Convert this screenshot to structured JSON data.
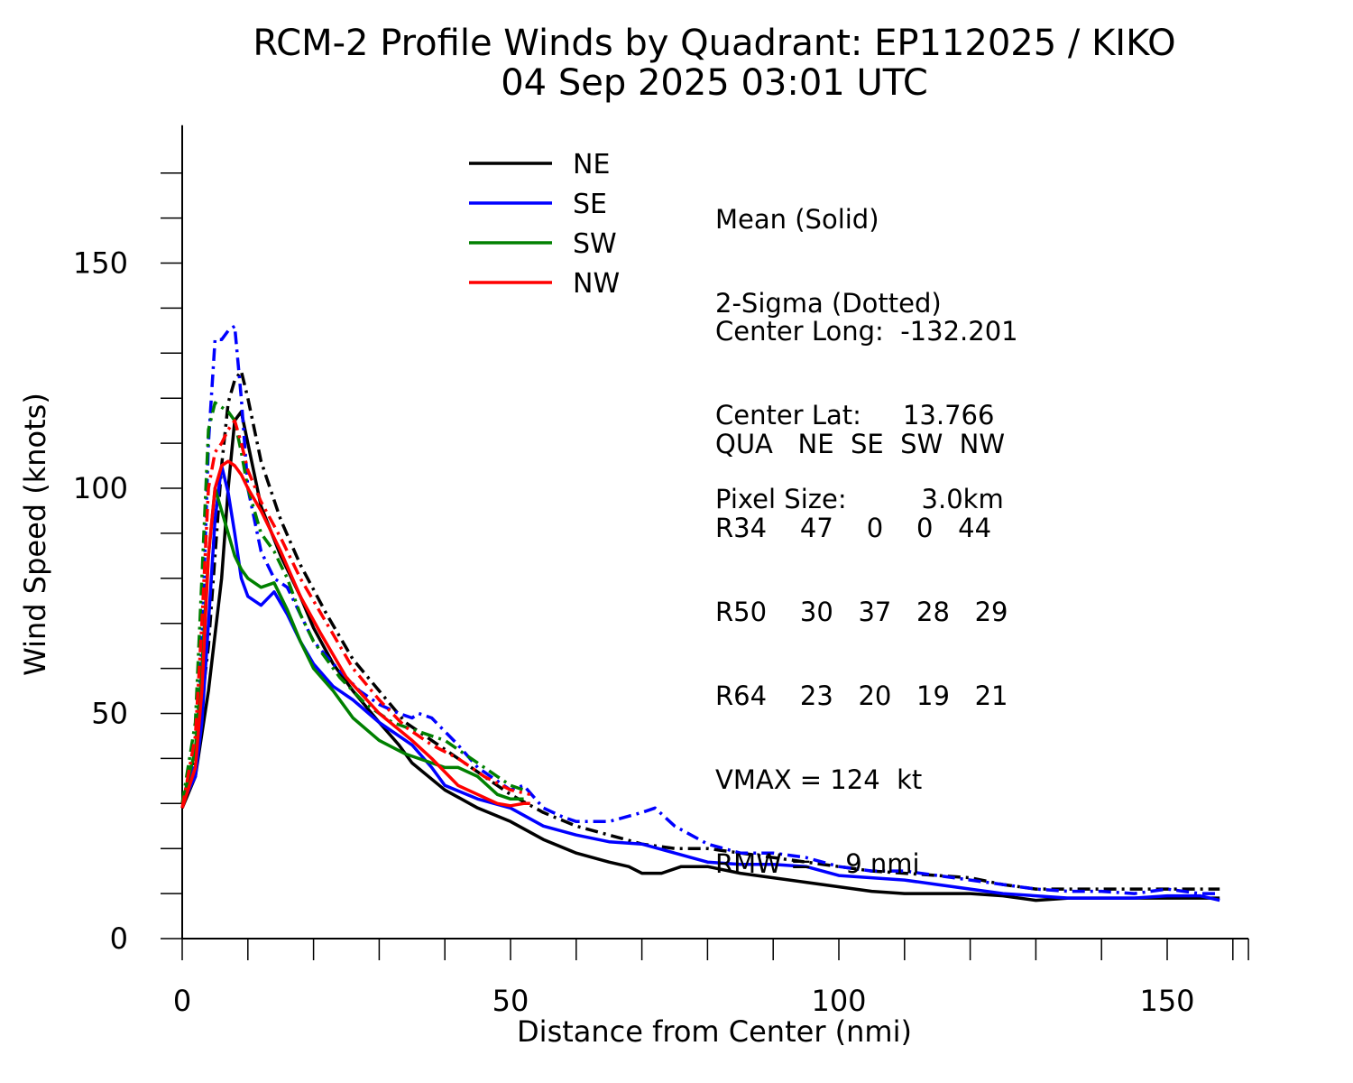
{
  "title_line1": "RCM-2 Profile Winds by Quadrant: EP112025 / KIKO",
  "title_line2": "04 Sep 2025 03:01 UTC",
  "info": {
    "mean_label": "Mean (Solid)",
    "sigma_label": "2-Sigma (Dotted)",
    "center_long": "Center Long:  -132.201",
    "center_lat": "Center Lat:     13.766",
    "pixel_size": "Pixel Size:         3.0km",
    "table_header": "QUA   NE  SE  SW  NW",
    "r34": "R34    47    0    0   44",
    "r50": "R50    30   37   28   29",
    "r64": "R64    23   20   19   21",
    "vmax": "VMAX = 124  kt",
    "rmw": "RMW =    9 nmi"
  },
  "chart_data": {
    "type": "line",
    "title": "RCM-2 Profile Winds by Quadrant: EP112025 / KIKO",
    "subtitle": "04 Sep 2025 03:01 UTC",
    "xlabel": "Distance from Center (nmi)",
    "ylabel": "Wind Speed (knots)",
    "xlim": [
      0,
      161
    ],
    "ylim": [
      0,
      180
    ],
    "x_ticks": [
      0,
      50,
      100,
      150
    ],
    "y_ticks": [
      0,
      50,
      100,
      150
    ],
    "legend_position": "top-center",
    "grid": false,
    "series": [
      {
        "name": "NE",
        "color": "#000000",
        "mean": [
          [
            0,
            29
          ],
          [
            2,
            36
          ],
          [
            4,
            55
          ],
          [
            6,
            80
          ],
          [
            7,
            100
          ],
          [
            8,
            115
          ],
          [
            9,
            117
          ],
          [
            10,
            110
          ],
          [
            12,
            96
          ],
          [
            15,
            85
          ],
          [
            18,
            76
          ],
          [
            20,
            69
          ],
          [
            23,
            61
          ],
          [
            26,
            55
          ],
          [
            30,
            48
          ],
          [
            33,
            43
          ],
          [
            35,
            39
          ],
          [
            40,
            33
          ],
          [
            45,
            29
          ],
          [
            50,
            26
          ],
          [
            55,
            22
          ],
          [
            60,
            19
          ],
          [
            65,
            17
          ],
          [
            68,
            16
          ],
          [
            70,
            14.5
          ],
          [
            73,
            14.5
          ],
          [
            76,
            16
          ],
          [
            80,
            16
          ],
          [
            85,
            14.5
          ],
          [
            90,
            13.5
          ],
          [
            95,
            12.5
          ],
          [
            100,
            11.5
          ],
          [
            105,
            10.5
          ],
          [
            110,
            10
          ],
          [
            115,
            10
          ],
          [
            120,
            10
          ],
          [
            125,
            9.5
          ],
          [
            130,
            8.5
          ],
          [
            135,
            9
          ],
          [
            140,
            9
          ],
          [
            145,
            9
          ],
          [
            150,
            9
          ],
          [
            155,
            9
          ],
          [
            158,
            9
          ]
        ],
        "sigma": [
          [
            0,
            29
          ],
          [
            2,
            40
          ],
          [
            4,
            65
          ],
          [
            6,
            105
          ],
          [
            7,
            119
          ],
          [
            8,
            124
          ],
          [
            9,
            126
          ],
          [
            10,
            120
          ],
          [
            12,
            106
          ],
          [
            15,
            93
          ],
          [
            18,
            83
          ],
          [
            22,
            72
          ],
          [
            26,
            62
          ],
          [
            30,
            55
          ],
          [
            34,
            48
          ],
          [
            38,
            44
          ],
          [
            42,
            40
          ],
          [
            46,
            36
          ],
          [
            50,
            32
          ],
          [
            55,
            28
          ],
          [
            60,
            25
          ],
          [
            65,
            23
          ],
          [
            70,
            21
          ],
          [
            75,
            20
          ],
          [
            80,
            20
          ],
          [
            85,
            19
          ],
          [
            90,
            18
          ],
          [
            95,
            17
          ],
          [
            100,
            16
          ],
          [
            105,
            15
          ],
          [
            110,
            14.5
          ],
          [
            115,
            14
          ],
          [
            120,
            13.5
          ],
          [
            125,
            12
          ],
          [
            130,
            11
          ],
          [
            135,
            11
          ],
          [
            140,
            11
          ],
          [
            145,
            11
          ],
          [
            150,
            11
          ],
          [
            155,
            11
          ],
          [
            158,
            11
          ]
        ]
      },
      {
        "name": "SE",
        "color": "#0000ff",
        "mean": [
          [
            0,
            30
          ],
          [
            2,
            36
          ],
          [
            3,
            48
          ],
          [
            4,
            70
          ],
          [
            5,
            93
          ],
          [
            6,
            105
          ],
          [
            7,
            99
          ],
          [
            8,
            90
          ],
          [
            9,
            80
          ],
          [
            10,
            76
          ],
          [
            12,
            74
          ],
          [
            14,
            77
          ],
          [
            16,
            72
          ],
          [
            18,
            66
          ],
          [
            20,
            61
          ],
          [
            23,
            56
          ],
          [
            26,
            53
          ],
          [
            30,
            48
          ],
          [
            35,
            43
          ],
          [
            38,
            38
          ],
          [
            40,
            34
          ],
          [
            45,
            31
          ],
          [
            50,
            29
          ],
          [
            55,
            25
          ],
          [
            60,
            23
          ],
          [
            65,
            21.5
          ],
          [
            70,
            21
          ],
          [
            75,
            19
          ],
          [
            80,
            17
          ],
          [
            85,
            16.5
          ],
          [
            90,
            16.5
          ],
          [
            95,
            16
          ],
          [
            100,
            14
          ],
          [
            105,
            13.5
          ],
          [
            110,
            13
          ],
          [
            115,
            12
          ],
          [
            120,
            11
          ],
          [
            125,
            10
          ],
          [
            130,
            9.5
          ],
          [
            135,
            9
          ],
          [
            140,
            9
          ],
          [
            145,
            9
          ],
          [
            150,
            9.5
          ],
          [
            155,
            9.5
          ],
          [
            158,
            8.5
          ]
        ],
        "sigma": [
          [
            0,
            30
          ],
          [
            2,
            40
          ],
          [
            3,
            65
          ],
          [
            4,
            110
          ],
          [
            5,
            133
          ],
          [
            6,
            133
          ],
          [
            7,
            135
          ],
          [
            8,
            136
          ],
          [
            9,
            120
          ],
          [
            10,
            100
          ],
          [
            12,
            86
          ],
          [
            14,
            80
          ],
          [
            16,
            78
          ],
          [
            18,
            72
          ],
          [
            20,
            66
          ],
          [
            23,
            61
          ],
          [
            27,
            55
          ],
          [
            30,
            52
          ],
          [
            33,
            50
          ],
          [
            35,
            49
          ],
          [
            36,
            50
          ],
          [
            38,
            49
          ],
          [
            40,
            46
          ],
          [
            42,
            43
          ],
          [
            45,
            38
          ],
          [
            48,
            35
          ],
          [
            50,
            33
          ],
          [
            52,
            34
          ],
          [
            55,
            29
          ],
          [
            58,
            27
          ],
          [
            60,
            26
          ],
          [
            65,
            26
          ],
          [
            70,
            28
          ],
          [
            72,
            29
          ],
          [
            75,
            25
          ],
          [
            80,
            21
          ],
          [
            85,
            19
          ],
          [
            90,
            19
          ],
          [
            95,
            18
          ],
          [
            100,
            16
          ],
          [
            105,
            15
          ],
          [
            110,
            15
          ],
          [
            115,
            14
          ],
          [
            120,
            13
          ],
          [
            125,
            12
          ],
          [
            130,
            11
          ],
          [
            135,
            10.5
          ],
          [
            140,
            10.5
          ],
          [
            145,
            10
          ],
          [
            150,
            11
          ],
          [
            155,
            10
          ],
          [
            158,
            10
          ]
        ]
      },
      {
        "name": "SW",
        "color": "#008000",
        "mean": [
          [
            0,
            30
          ],
          [
            2,
            42
          ],
          [
            3,
            60
          ],
          [
            4,
            85
          ],
          [
            5,
            100
          ],
          [
            6,
            95
          ],
          [
            7,
            90
          ],
          [
            8,
            85
          ],
          [
            9,
            82
          ],
          [
            10,
            80
          ],
          [
            12,
            78
          ],
          [
            14,
            79
          ],
          [
            16,
            73
          ],
          [
            18,
            66
          ],
          [
            20,
            60
          ],
          [
            23,
            55
          ],
          [
            26,
            49
          ],
          [
            30,
            44
          ],
          [
            34,
            41
          ],
          [
            38,
            39
          ],
          [
            40,
            38
          ],
          [
            42,
            38
          ],
          [
            45,
            36
          ],
          [
            48,
            32
          ],
          [
            50,
            31
          ],
          [
            52,
            31
          ]
        ],
        "sigma": [
          [
            0,
            30
          ],
          [
            2,
            48
          ],
          [
            3,
            80
          ],
          [
            4,
            113
          ],
          [
            5,
            119
          ],
          [
            6,
            118
          ],
          [
            7,
            117
          ],
          [
            8,
            115
          ],
          [
            9,
            108
          ],
          [
            10,
            100
          ],
          [
            12,
            90
          ],
          [
            14,
            86
          ],
          [
            16,
            80
          ],
          [
            18,
            72
          ],
          [
            20,
            66
          ],
          [
            24,
            58
          ],
          [
            28,
            52
          ],
          [
            32,
            48
          ],
          [
            36,
            46
          ],
          [
            40,
            44
          ],
          [
            44,
            40
          ],
          [
            48,
            36
          ],
          [
            50,
            34
          ],
          [
            52,
            33
          ]
        ]
      },
      {
        "name": "NW",
        "color": "#ff0000",
        "mean": [
          [
            0,
            29
          ],
          [
            2,
            38
          ],
          [
            3,
            55
          ],
          [
            4,
            85
          ],
          [
            5,
            100
          ],
          [
            6,
            105
          ],
          [
            7,
            106
          ],
          [
            8,
            105
          ],
          [
            9,
            103
          ],
          [
            10,
            100
          ],
          [
            12,
            95
          ],
          [
            15,
            86
          ],
          [
            18,
            76
          ],
          [
            21,
            68
          ],
          [
            25,
            58
          ],
          [
            30,
            50
          ],
          [
            35,
            44
          ],
          [
            38,
            40
          ],
          [
            40,
            37
          ],
          [
            42,
            34
          ],
          [
            45,
            32
          ],
          [
            48,
            30
          ],
          [
            50,
            29.5
          ],
          [
            52,
            30
          ],
          [
            53,
            30
          ]
        ],
        "sigma": [
          [
            0,
            29
          ],
          [
            2,
            45
          ],
          [
            3,
            70
          ],
          [
            4,
            100
          ],
          [
            5,
            108
          ],
          [
            6,
            110
          ],
          [
            7,
            113
          ],
          [
            8,
            115
          ],
          [
            9,
            110
          ],
          [
            10,
            104
          ],
          [
            12,
            97
          ],
          [
            15,
            89
          ],
          [
            18,
            80
          ],
          [
            22,
            70
          ],
          [
            26,
            60
          ],
          [
            30,
            53
          ],
          [
            34,
            47
          ],
          [
            38,
            43
          ],
          [
            42,
            40
          ],
          [
            46,
            36
          ],
          [
            50,
            33
          ],
          [
            53,
            32
          ]
        ]
      }
    ]
  }
}
